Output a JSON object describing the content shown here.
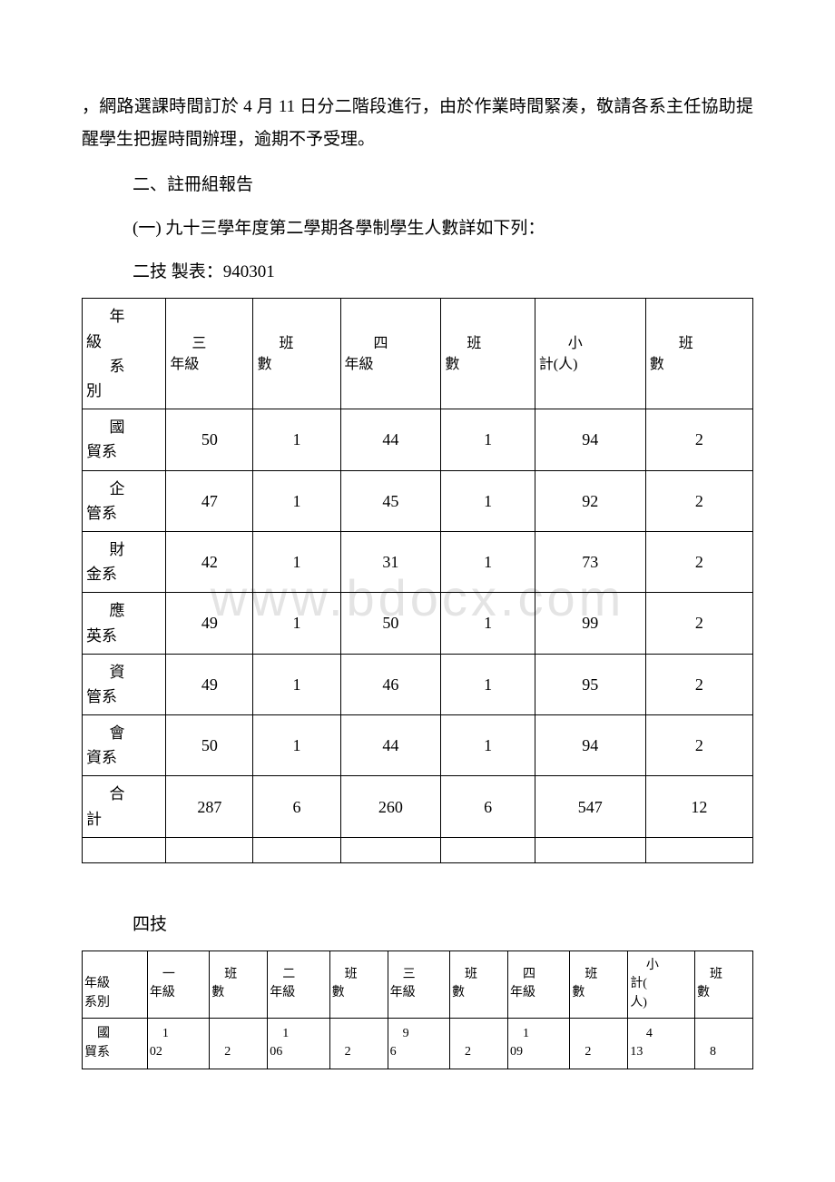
{
  "watermark": "www.bdocx.com",
  "paragraphs": {
    "p1": "，網路選課時間訂於 4 月 11 日分二階段進行，由於作業時間緊湊，敬請各系主任協助提醒學生把握時間辦理，逾期不予受理。",
    "p2": "二、註冊組報告",
    "p3": "(一) 九十三學年度第二學期各學制學生人數詳如下列：",
    "p4": "二技  製表：940301",
    "p5": "四技"
  },
  "table1": {
    "headers": {
      "c0a": "年",
      "c0b": "級",
      "c0c": "系",
      "c0d": "別",
      "c1a": "三",
      "c1b": "年級",
      "c2a": "班",
      "c2b": "數",
      "c3a": "四",
      "c3b": "年級",
      "c4a": "班",
      "c4b": "數",
      "c5a": "小",
      "c5b": "計(人)",
      "c6a": "班",
      "c6b": "數"
    },
    "rows": [
      {
        "dept_a": "國",
        "dept_b": "貿系",
        "g3": "50",
        "c3": "1",
        "g4": "44",
        "c4": "1",
        "sub": "94",
        "cl": "2"
      },
      {
        "dept_a": "企",
        "dept_b": "管系",
        "g3": "47",
        "c3": "1",
        "g4": "45",
        "c4": "1",
        "sub": "92",
        "cl": "2"
      },
      {
        "dept_a": "財",
        "dept_b": "金系",
        "g3": "42",
        "c3": "1",
        "g4": "31",
        "c4": "1",
        "sub": "73",
        "cl": "2"
      },
      {
        "dept_a": "應",
        "dept_b": "英系",
        "g3": "49",
        "c3": "1",
        "g4": "50",
        "c4": "1",
        "sub": "99",
        "cl": "2"
      },
      {
        "dept_a": "資",
        "dept_b": "管系",
        "g3": "49",
        "c3": "1",
        "g4": "46",
        "c4": "1",
        "sub": "95",
        "cl": "2"
      },
      {
        "dept_a": "會",
        "dept_b": "資系",
        "g3": "50",
        "c3": "1",
        "g4": "44",
        "c4": "1",
        "sub": "94",
        "cl": "2"
      },
      {
        "dept_a": "合",
        "dept_b": "計",
        "g3": "287",
        "c3": "6",
        "g4": "260",
        "c4": "6",
        "sub": "547",
        "cl": "12"
      }
    ]
  },
  "table2": {
    "headers": {
      "c0a": "年級",
      "c0b": "系別",
      "y1a": "一",
      "y1b": "年級",
      "b1a": "班",
      "b1b": "數",
      "y2a": "二",
      "y2b": "年級",
      "b2a": "班",
      "b2b": "數",
      "y3a": "三",
      "y3b": "年級",
      "b3a": "班",
      "b3b": "數",
      "y4a": "四",
      "y4b": "年級",
      "b4a": "班",
      "b4b": "數",
      "suba": "小",
      "subb": "計(",
      "subc": "人)",
      "cla": "班",
      "clb": "數"
    },
    "rows": [
      {
        "dept_a": "國",
        "dept_b": "貿系",
        "y1a": "1",
        "y1b": "02",
        "b1": "2",
        "y2a": "1",
        "y2b": "06",
        "b2": "2",
        "y3a": "9",
        "y3b": "6",
        "b3": "2",
        "y4a": "1",
        "y4b": "09",
        "b4": "2",
        "suba": "4",
        "subb": "13",
        "cl": "8"
      }
    ]
  }
}
